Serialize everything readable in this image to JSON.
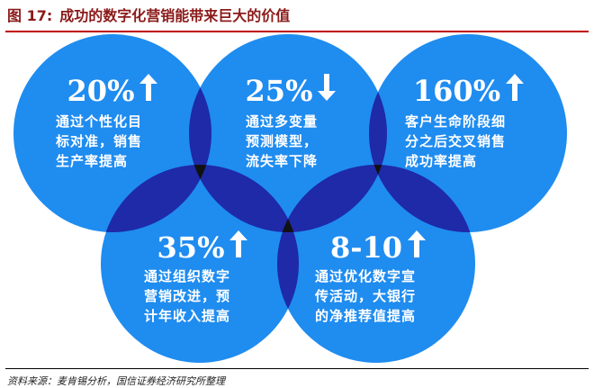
{
  "figure": {
    "label": "图 17:",
    "title": "成功的数字化营销能带来巨大的价值"
  },
  "colors": {
    "circle": "#1f8cf0",
    "overlap_two": "#1e2aa8",
    "overlap_three": "#111111",
    "title_red": "#8b1a1a"
  },
  "circles": [
    {
      "id": "top-left",
      "value": "20%",
      "direction": "up",
      "lines": [
        "通过个性化目",
        "标对准，销售",
        "生产率提高"
      ]
    },
    {
      "id": "top-center",
      "value": "25%",
      "direction": "down",
      "lines": [
        "通过多变量",
        "预测模型，",
        "流失率下降"
      ]
    },
    {
      "id": "top-right",
      "value": "160%",
      "direction": "up",
      "lines": [
        "客户生命阶段细",
        "分之后交叉销售",
        "成功率提高"
      ]
    },
    {
      "id": "bottom-left",
      "value": "35%",
      "direction": "up",
      "lines": [
        "通过组织数字",
        "营销改进，预",
        "计年收入提高"
      ]
    },
    {
      "id": "bottom-right",
      "value": "8-10",
      "direction": "up",
      "lines": [
        "通过优化数字宣",
        "传活动，大银行",
        "的净推荐值提高"
      ]
    }
  ],
  "source": "资料来源：麦肯锡分析，国信证券经济研究所整理"
}
